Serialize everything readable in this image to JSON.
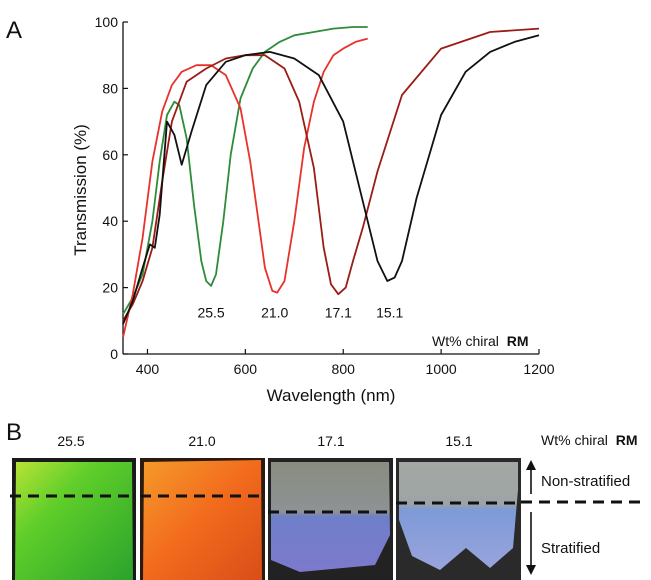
{
  "panels": {
    "a": "A",
    "b": "B"
  },
  "chart_data": {
    "type": "line",
    "title": "",
    "xlabel": "Wavelength (nm)",
    "ylabel": "Transmission (%)",
    "xlim": [
      350,
      1200
    ],
    "ylim": [
      0,
      100
    ],
    "x_ticks": [
      400,
      600,
      800,
      1000,
      1200
    ],
    "y_ticks": [
      0,
      20,
      40,
      60,
      80,
      100
    ],
    "grid": false,
    "legend_title": "Wt% chiral RM",
    "legend_title_prefix": "Wt% chiral",
    "legend_title_bold": "RM",
    "series": [
      {
        "name": "25.5",
        "color": "#2e8b3a",
        "label_at": [
          530,
          11
        ],
        "x": [
          350,
          370,
          390,
          410,
          425,
          440,
          455,
          465,
          480,
          495,
          510,
          520,
          530,
          540,
          555,
          570,
          590,
          615,
          640,
          670,
          700,
          740,
          780,
          820,
          850
        ],
        "y": [
          12,
          17,
          24,
          40,
          58,
          72,
          76,
          75,
          65,
          45,
          28,
          22,
          20.5,
          24,
          40,
          60,
          77,
          86,
          91,
          94,
          96,
          97,
          98,
          98.5,
          98.5
        ]
      },
      {
        "name": "21.0",
        "color": "#e8322a",
        "label_at": [
          660,
          11
        ],
        "x": [
          350,
          370,
          390,
          410,
          430,
          450,
          470,
          500,
          530,
          560,
          590,
          610,
          625,
          640,
          655,
          665,
          680,
          700,
          720,
          740,
          760,
          780,
          800,
          825,
          850
        ],
        "y": [
          5,
          18,
          35,
          58,
          73,
          81,
          85,
          87,
          87,
          84,
          74,
          58,
          42,
          26,
          19,
          18.5,
          22,
          40,
          62,
          76,
          85,
          90,
          92,
          94,
          95
        ]
      },
      {
        "name": "17.1",
        "color": "#9b1c16",
        "label_at": [
          790,
          11
        ],
        "x": [
          350,
          370,
          390,
          410,
          430,
          450,
          480,
          520,
          560,
          600,
          640,
          680,
          710,
          740,
          760,
          775,
          790,
          805,
          820,
          840,
          870,
          920,
          1000,
          1100,
          1200
        ],
        "y": [
          10,
          15,
          22,
          32,
          52,
          70,
          82,
          86,
          89,
          90,
          90,
          86,
          76,
          56,
          32,
          21,
          18,
          20,
          28,
          38,
          55,
          78,
          92,
          97,
          98
        ]
      },
      {
        "name": "15.1",
        "color": "#111111",
        "label_at": [
          895,
          11
        ],
        "x": [
          350,
          370,
          390,
          405,
          415,
          425,
          440,
          455,
          470,
          490,
          520,
          560,
          600,
          650,
          700,
          750,
          800,
          840,
          870,
          890,
          905,
          920,
          950,
          1000,
          1050,
          1100,
          1150,
          1200
        ],
        "y": [
          9,
          16,
          26,
          33,
          32,
          42,
          70,
          66,
          57,
          67,
          81,
          88,
          90,
          91,
          89,
          84,
          70,
          46,
          28,
          22,
          23,
          28,
          47,
          72,
          85,
          91,
          94,
          96
        ]
      }
    ]
  },
  "photos": {
    "samples": [
      {
        "label": "25.5",
        "tone": "green",
        "divider_level": 0.2
      },
      {
        "label": "21.0",
        "tone": "orange",
        "divider_level": 0.2
      },
      {
        "label": "17.1",
        "tone": "grey-blue",
        "divider_level": 0.45
      },
      {
        "label": "15.1",
        "tone": "grey-blue",
        "divider_level": 0.4
      }
    ],
    "header_prefix": "Wt% chiral",
    "header_bold": "RM",
    "non_stratified": "Non-stratified",
    "stratified": "Stratified"
  }
}
